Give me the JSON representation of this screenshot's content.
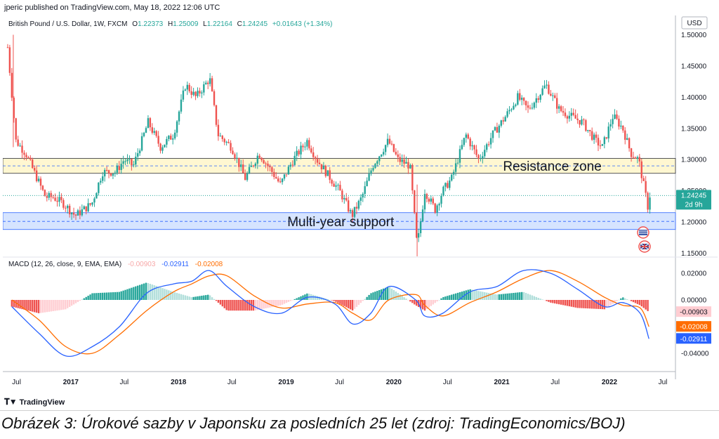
{
  "publisher_line": "jperic published on TradingView.com, May 18, 2022 12:06 UTC",
  "legend": {
    "symbol": "British Pound / U.S. Dollar, 1W, FXCM",
    "open_label": "O",
    "open": "1.22373",
    "high_label": "H",
    "high": "1.25009",
    "low_label": "L",
    "low": "1.22164",
    "close_label": "C",
    "close": "1.24245",
    "change": "+0.01643 (+1.34%)"
  },
  "currency": "USD",
  "last_price": {
    "value": "1.24245",
    "countdown": "2d 9h"
  },
  "zones": {
    "resistance": {
      "label": "Resistance zone",
      "low": 1.278,
      "high": 1.302,
      "mid": 1.29
    },
    "support": {
      "label": "Multi-year support",
      "low": 1.188,
      "high": 1.215,
      "mid": 1.201
    }
  },
  "macd": {
    "title": "MACD (12, 26, close, 9, EMA, EMA)",
    "hist_value": "-0.00903",
    "macd_value": "-0.02911",
    "signal_value": "-0.02008",
    "y_ticks": [
      "0.02000",
      "0.00000",
      "-0.02000",
      "-0.04000"
    ]
  },
  "price_ticks": [
    "1.50000",
    "1.45000",
    "1.40000",
    "1.35000",
    "1.30000",
    "1.25000",
    "1.20000",
    "1.15000"
  ],
  "x_ticks": [
    "Jul",
    "2017",
    "Jul",
    "2018",
    "Jul",
    "2019",
    "Jul",
    "2020",
    "Jul",
    "2021",
    "Jul",
    "2022",
    "Jul"
  ],
  "brand": "TradingView",
  "caption": "Obrázek 3: Úrokové sazby v Japonsku za posledních 25 let (zdroj: TradingEconomics/BOJ)",
  "colors": {
    "up": "#26a69a",
    "down": "#ef5350",
    "macd": "#2962ff",
    "signal": "#ff6d00",
    "resistance_fill": "#fff7d1",
    "support_fill": "#d6e4ff"
  },
  "chart_data": [
    {
      "type": "candlestick",
      "title": "British Pound / U.S. Dollar, 1W, FXCM",
      "x_range": [
        "2016-06",
        "2022-07"
      ],
      "ylim": [
        1.14,
        1.52
      ],
      "y_scale": "linear",
      "series": [
        {
          "name": "GBPUSD",
          "dates": [
            "2016-06-01",
            "2016-06-29",
            "2016-08-01",
            "2016-10-07",
            "2016-11-01",
            "2016-12-06",
            "2017-01-16",
            "2017-03-14",
            "2017-04-18",
            "2017-06-01",
            "2017-07-01",
            "2017-08-01",
            "2017-09-20",
            "2017-11-01",
            "2017-12-15",
            "2018-01-25",
            "2018-03-01",
            "2018-04-17",
            "2018-05-15",
            "2018-06-30",
            "2018-08-15",
            "2018-10-01",
            "2018-11-15",
            "2018-12-12",
            "2019-01-25",
            "2019-03-13",
            "2019-04-15",
            "2019-05-31",
            "2019-07-01",
            "2019-08-12",
            "2019-09-15",
            "2019-10-21",
            "2019-12-13",
            "2020-01-15",
            "2020-02-25",
            "2020-03-20",
            "2020-04-15",
            "2020-05-20",
            "2020-06-15",
            "2020-07-15",
            "2020-09-01",
            "2020-10-15",
            "2020-12-01",
            "2021-01-15",
            "2021-02-24",
            "2021-04-01",
            "2021-05-31",
            "2021-07-15",
            "2021-08-20",
            "2021-10-01",
            "2021-11-15",
            "2021-12-08",
            "2022-01-13",
            "2022-02-15",
            "2022-03-15",
            "2022-04-10",
            "2022-05-13",
            "2022-05-18"
          ],
          "close": [
            1.48,
            1.33,
            1.31,
            1.24,
            1.24,
            1.23,
            1.21,
            1.23,
            1.28,
            1.28,
            1.3,
            1.29,
            1.36,
            1.32,
            1.34,
            1.42,
            1.4,
            1.43,
            1.34,
            1.32,
            1.27,
            1.31,
            1.28,
            1.26,
            1.3,
            1.33,
            1.3,
            1.27,
            1.25,
            1.21,
            1.24,
            1.29,
            1.33,
            1.3,
            1.29,
            1.16,
            1.25,
            1.22,
            1.25,
            1.27,
            1.34,
            1.3,
            1.34,
            1.37,
            1.4,
            1.38,
            1.42,
            1.38,
            1.37,
            1.36,
            1.33,
            1.32,
            1.37,
            1.35,
            1.31,
            1.3,
            1.22,
            1.2425
          ]
        }
      ]
    },
    {
      "type": "line",
      "title": "MACD (12, 26, close, 9, EMA, EMA)",
      "ylim": [
        -0.05,
        0.028
      ],
      "series": [
        {
          "name": "MACD",
          "x": [
            "2016-06",
            "2016-09",
            "2016-12",
            "2017-03",
            "2017-06",
            "2017-09",
            "2017-12",
            "2018-02",
            "2018-04",
            "2018-06",
            "2018-09",
            "2018-12",
            "2019-03",
            "2019-06",
            "2019-08",
            "2019-10",
            "2019-12",
            "2020-03",
            "2020-04",
            "2020-06",
            "2020-09",
            "2020-12",
            "2021-03",
            "2021-06",
            "2021-09",
            "2021-12",
            "2022-02",
            "2022-04",
            "2022-05"
          ],
          "values": [
            -0.005,
            -0.025,
            -0.042,
            -0.035,
            -0.02,
            0.005,
            0.012,
            0.014,
            0.022,
            0.01,
            -0.005,
            -0.01,
            0.002,
            -0.003,
            -0.018,
            -0.01,
            0.01,
            0.0,
            -0.012,
            -0.01,
            0.006,
            0.01,
            0.022,
            0.02,
            0.008,
            -0.005,
            -0.002,
            -0.01,
            -0.02911
          ]
        },
        {
          "name": "Signal",
          "x": [
            "2016-06",
            "2016-09",
            "2016-12",
            "2017-03",
            "2017-06",
            "2017-09",
            "2017-12",
            "2018-02",
            "2018-04",
            "2018-06",
            "2018-09",
            "2018-12",
            "2019-03",
            "2019-06",
            "2019-08",
            "2019-10",
            "2019-12",
            "2020-03",
            "2020-04",
            "2020-06",
            "2020-09",
            "2020-12",
            "2021-03",
            "2021-06",
            "2021-09",
            "2021-12",
            "2022-02",
            "2022-04",
            "2022-05"
          ],
          "values": [
            0.0,
            -0.015,
            -0.035,
            -0.04,
            -0.026,
            -0.008,
            0.006,
            0.012,
            0.018,
            0.018,
            0.003,
            -0.006,
            -0.003,
            -0.002,
            -0.01,
            -0.015,
            0.0,
            0.004,
            -0.004,
            -0.012,
            -0.002,
            0.006,
            0.016,
            0.022,
            0.014,
            0.002,
            -0.004,
            -0.006,
            -0.02008
          ]
        },
        {
          "name": "Histogram",
          "x": [
            "2022-05"
          ],
          "values": [
            -0.00903
          ]
        }
      ]
    }
  ]
}
